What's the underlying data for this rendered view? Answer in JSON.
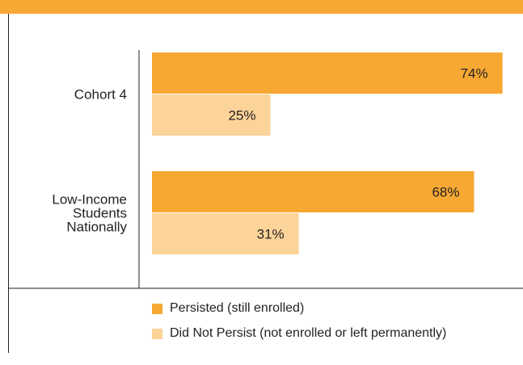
{
  "chart_data": {
    "type": "bar",
    "orientation": "horizontal",
    "title": "",
    "xlabel": "",
    "ylabel": "",
    "xlim": [
      0,
      100
    ],
    "categories": [
      "Cohort 4",
      "Low-Income Students Nationally"
    ],
    "category_lines": [
      [
        "Cohort 4"
      ],
      [
        "Low-Income",
        "Students",
        "Nationally"
      ]
    ],
    "series": [
      {
        "name": "Persisted (still enrolled)",
        "values": [
          74,
          68
        ],
        "labels": [
          "74%",
          "68%"
        ],
        "color": "#f7a833"
      },
      {
        "name": "Did Not Persist (not enrolled or left permanently)",
        "values": [
          25,
          31
        ],
        "labels": [
          "25%",
          "31%"
        ],
        "color": "#fcd398"
      }
    ],
    "legend_position": "bottom",
    "grid": false
  }
}
